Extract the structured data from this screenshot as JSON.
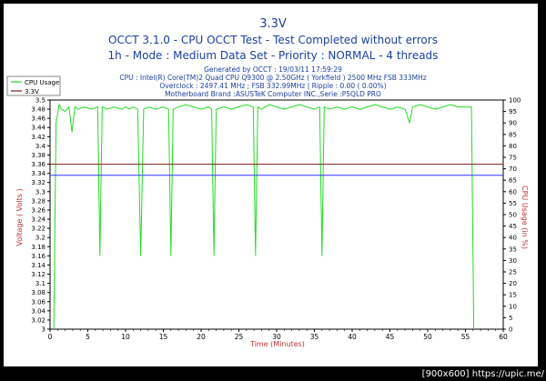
{
  "chart_data": {
    "type": "line",
    "title": "3.3V",
    "subtitle_lines": [
      "OCCT 3.1.0 - CPU OCCT Test - Test Completed without errors",
      "1h - Mode : Medium Data Set - Priority : NORMAL - 4 threads"
    ],
    "info_lines": [
      "Generated by OCCT : 19/03/11 17:59:29",
      "CPU : Intel(R) Core(TM)2 Quad CPU Q9300 @ 2.50GHz ( Yorkfield ) 2500 MHz FSB 333MHz",
      "Overclock : 2497.41 MHz ; FSB 332.99MHz | Ripple : 0.00 ( 0.00%)",
      "Motherboard Brand :ASUSTeK Computer INC.,Serie :P5QLD PRO"
    ],
    "xlabel": "Time (Minutes)",
    "ylabel": "Voltage ( Volts )",
    "y2label": "CPU Usage (in %)",
    "xlim": [
      0,
      60
    ],
    "ylim": [
      3.0,
      3.5
    ],
    "y2lim": [
      0,
      100
    ],
    "x_ticks": [
      "0",
      "5",
      "10",
      "15",
      "20",
      "25",
      "30",
      "35",
      "40",
      "45",
      "50",
      "55",
      "60"
    ],
    "y_ticks": [
      "3",
      "3.02",
      "3.04",
      "3.06",
      "3.08",
      "3.1",
      "3.12",
      "3.14",
      "3.16",
      "3.18",
      "3.2",
      "3.22",
      "3.24",
      "3.26",
      "3.28",
      "3.3",
      "3.32",
      "3.34",
      "3.36",
      "3.38",
      "3.4",
      "3.42",
      "3.44",
      "3.46",
      "3.48",
      "3.5"
    ],
    "y2_ticks": [
      "0",
      "5",
      "10",
      "15",
      "20",
      "25",
      "30",
      "35",
      "40",
      "45",
      "50",
      "55",
      "60",
      "65",
      "70",
      "75",
      "80",
      "85",
      "90",
      "95",
      "100"
    ],
    "legend": [
      "CPU Usage",
      "3.3V"
    ],
    "legend_position": "top-left",
    "grid": false,
    "series": [
      {
        "name": "CPU Usage",
        "axis": "right",
        "color": "#22dd22",
        "x": [
          0.5,
          0.8,
          1.2,
          1.5,
          2,
          2.5,
          2.9,
          3.3,
          3.7,
          4.5,
          5.5,
          6.3,
          6.6,
          6.9,
          7.5,
          8.5,
          9.5,
          10,
          10.5,
          11,
          11.6,
          12.0,
          12.4,
          13,
          14,
          15,
          15.7,
          16.0,
          16.3,
          17,
          18,
          19,
          20,
          21,
          21.4,
          21.7,
          22.0,
          23,
          24,
          25,
          26,
          26.9,
          27.2,
          27.5,
          28,
          29,
          30,
          31,
          32,
          33,
          34,
          35,
          35.7,
          36.0,
          36.3,
          37,
          38,
          39,
          40,
          41,
          42,
          43,
          44,
          45,
          46,
          47,
          47.6,
          48,
          49,
          50,
          51,
          52,
          53,
          54,
          55,
          55.5,
          55.8,
          56.1
        ],
        "values": [
          0,
          90,
          98,
          96,
          95,
          97,
          86,
          97,
          96,
          97,
          96,
          97,
          32,
          97,
          96,
          97,
          96,
          97,
          96,
          97,
          96,
          32,
          96,
          97,
          96,
          97,
          96,
          32,
          96,
          97,
          98,
          97,
          96,
          97,
          96,
          32,
          96,
          97,
          96,
          97,
          98,
          97,
          32,
          97,
          96,
          98,
          97,
          96,
          97,
          98,
          97,
          96,
          97,
          32,
          97,
          96,
          97,
          96,
          97,
          96,
          97,
          98,
          97,
          96,
          97,
          96,
          90,
          97,
          98,
          97,
          96,
          97,
          98,
          97,
          97,
          97,
          97,
          0
        ]
      },
      {
        "name": "3.3V",
        "axis": "left",
        "color": "#7a1a1a",
        "x": [
          0,
          60
        ],
        "values": [
          3.36,
          3.36
        ]
      },
      {
        "axis": "left",
        "color": "#3030ff",
        "x": [
          0,
          60
        ],
        "values": [
          3.336,
          3.336
        ]
      }
    ]
  },
  "watermark": "[900x600] https://upic.me/"
}
